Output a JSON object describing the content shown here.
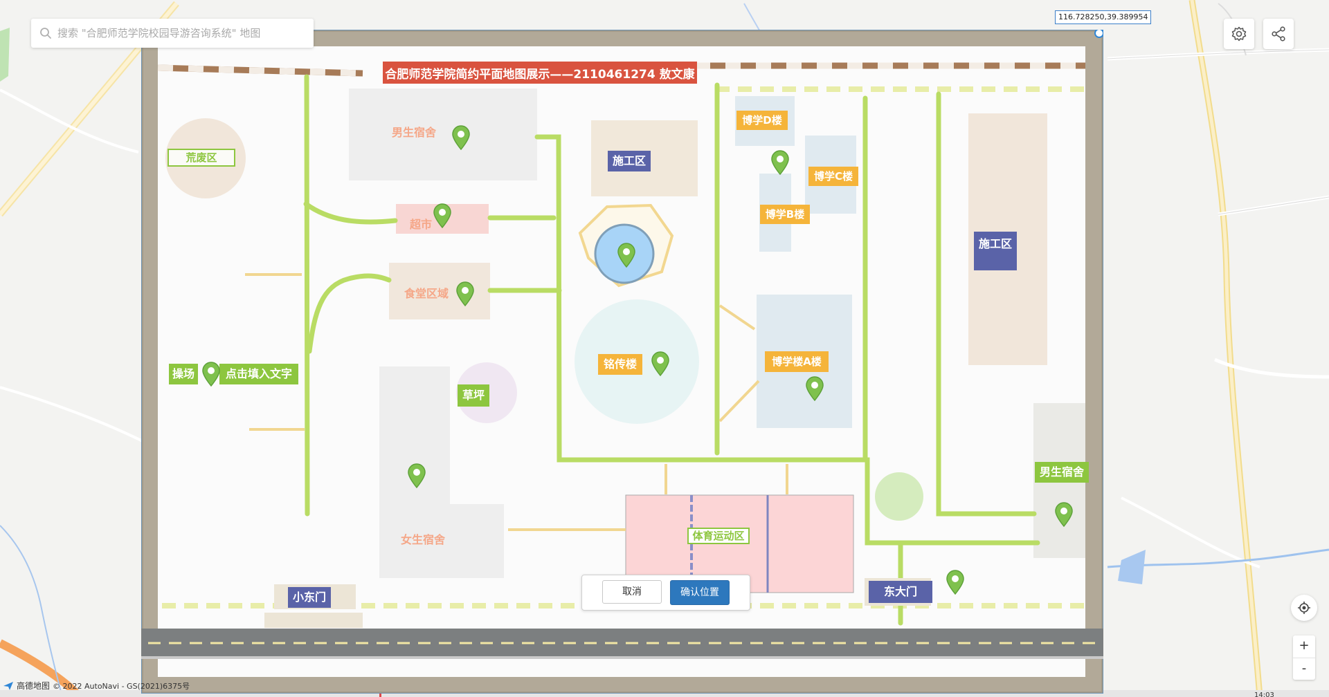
{
  "search": {
    "placeholder": "搜索 \"合肥师范学院校园导游咨询系统\" 地图"
  },
  "coordinate": "116.728250,39.389954",
  "toolbar": {
    "settings_icon": "gear-icon",
    "share_icon": "share-icon"
  },
  "overlay_map": {
    "title": "合肥师范学院简约平面地图展示——2110461274 敖文康",
    "labels": {
      "wasteland": "荒废区",
      "male_dorm_top": "男生宿舍",
      "supermarket": "超市",
      "canteen": "食堂区域",
      "construction_center": "施工区",
      "boxue_d": "博学D楼",
      "boxue_c": "博学C楼",
      "boxue_b": "博学B楼",
      "construction_right": "施工区",
      "playground": "操场",
      "click_fill": "点击填入文字",
      "lawn": "草坪",
      "mingchuan": "铭传楼",
      "boxue_a": "博学楼A楼",
      "male_dorm_right": "男生宿舍",
      "female_dorm": "女生宿舍",
      "sports_area": "体育运动区",
      "small_east_gate": "小东门",
      "east_gate": "东大门"
    },
    "colors": {
      "green_path": "#b9dc64",
      "yellow_path": "#f1d690",
      "red_banner": "#d9533f",
      "label_orange": "#f5b43a",
      "label_green": "#8dc63f",
      "label_purple": "#5a63a8",
      "frame": "#a49b8a"
    }
  },
  "dialog": {
    "cancel": "取消",
    "confirm": "确认位置"
  },
  "controls": {
    "locate_icon": "locate-icon",
    "zoom_in": "+",
    "zoom_out": "-"
  },
  "attribution": {
    "logo": "高德地图",
    "copyright": "© 2022 AutoNavi - GS(2021)6375号"
  },
  "scale": "14:03"
}
